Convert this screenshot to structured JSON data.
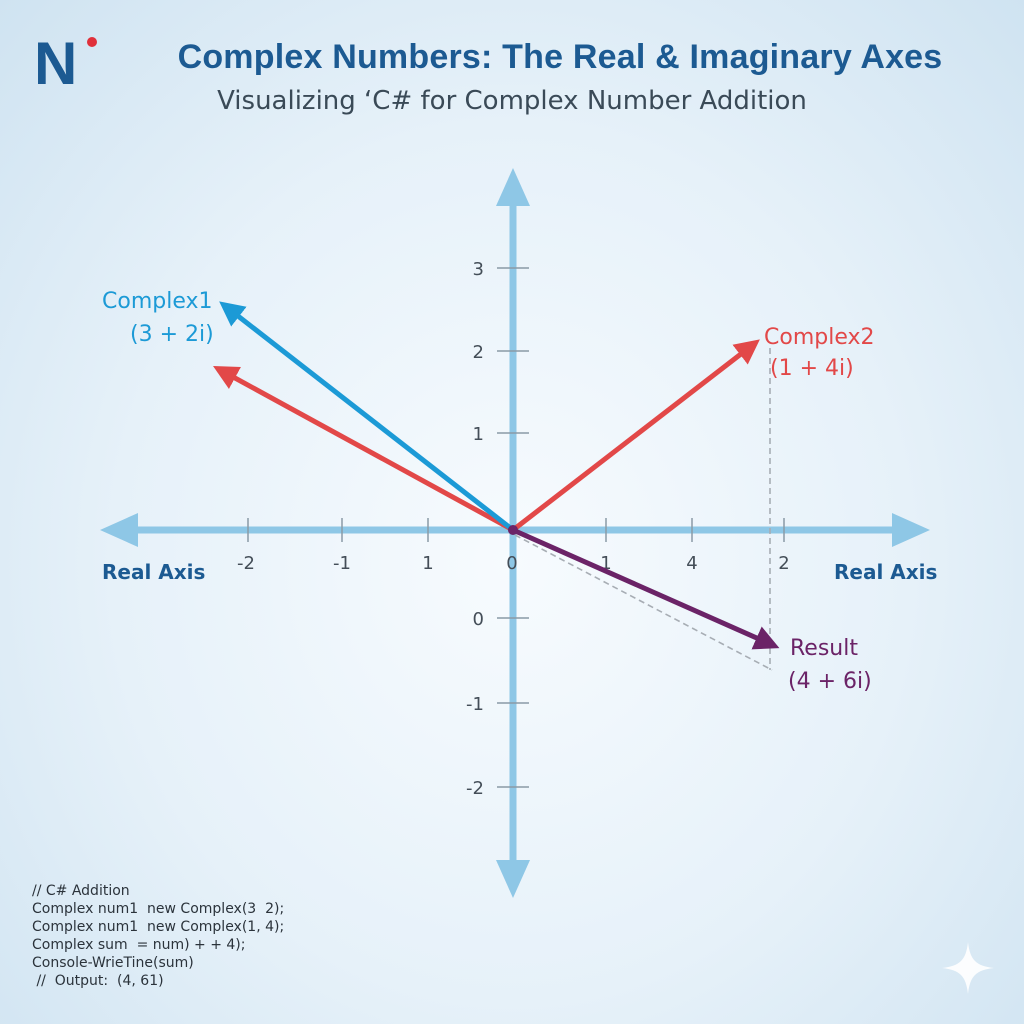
{
  "brand": {
    "logo_text": "N",
    "accent_color": "#e0303a",
    "color": "#1c5a92"
  },
  "header": {
    "title": "Complex Numbers: The Real & Imaginary Axes",
    "subtitle": "Visualizing ‘C# for Complex Number Addition"
  },
  "diagram": {
    "axis_color": "#8ec7e6",
    "x_axis_left_label": "Real Axis",
    "x_axis_right_label": "Real Axis",
    "x_tick_labels": [
      "-2",
      "-1",
      "1",
      "0",
      "1",
      "4",
      "2"
    ],
    "y_tick_labels": [
      "3",
      "2",
      "1",
      "0",
      "-1",
      "-2"
    ],
    "vectors": [
      {
        "id": "complex1",
        "name": "Complex1",
        "value": "(3 + 2i)",
        "color": "#1c9ad6"
      },
      {
        "id": "complex1-shadow",
        "name": "",
        "value": "",
        "color": "#e24848"
      },
      {
        "id": "complex2",
        "name": "Complex2",
        "value": "(1 + 4i)",
        "color": "#e24848"
      },
      {
        "id": "result",
        "name": "Result",
        "value": "(4 + 6i)",
        "color": "#6b2367"
      }
    ]
  },
  "code": {
    "lines": [
      "// C# Addition",
      "Complex num1  new Complex(3  2);",
      "Complex num1  new Complex(1, 4);",
      "Complex sum  = num) + + 4);",
      "Console-WrieTine(sum)",
      " //  Output:  (4, 61)"
    ]
  }
}
